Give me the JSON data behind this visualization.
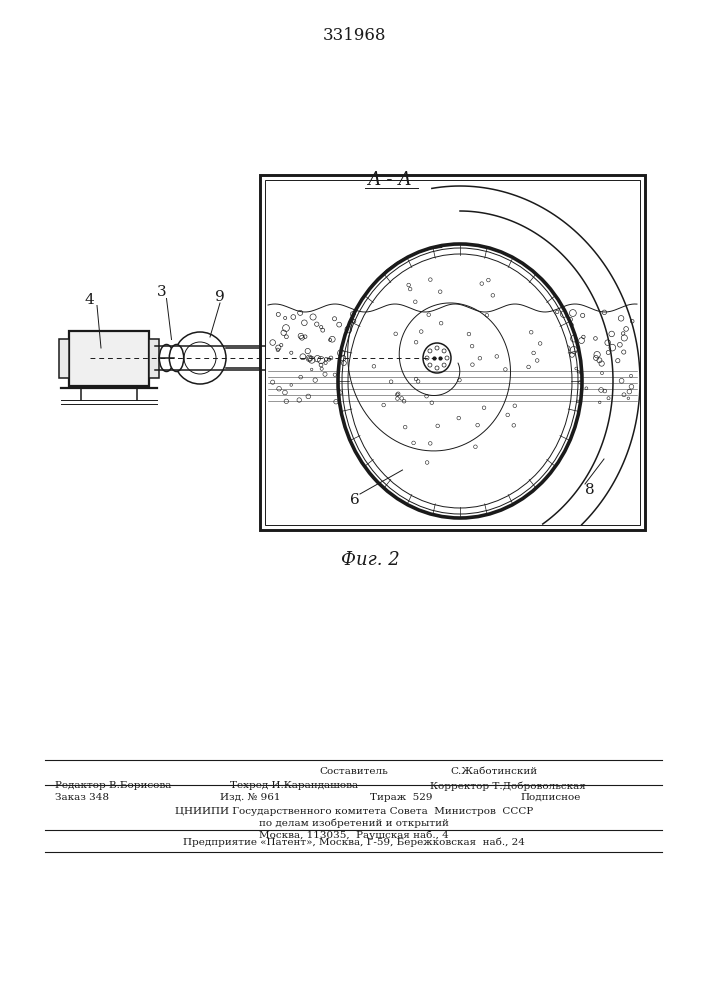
{
  "patent_number": "331968",
  "fig_label": "Фиг. 2",
  "section_label": "А - А",
  "bg_color": "#ffffff",
  "line_color": "#1a1a1a",
  "footer_line1_left": "Составитель",
  "footer_line1_right": "С.Жаботинский",
  "footer_line2": "Редактор В.Борисова   Техред И.Карандашова  Корректор Т.Добровольская",
  "footer_line3": "Заказ 348        Изд. № 961       Тираж   529        Подписное",
  "footer_line4": "ЦНИИПИ Государственного комитета Совета  Министров  СССР",
  "footer_line5": "по делам изобретений и открытий",
  "footer_line6": "Москва, 113035,  Раушская наб., 4",
  "footer_line7": "Предприятие «Патент», Москва, Г-59, Бережковская  наб., 24"
}
